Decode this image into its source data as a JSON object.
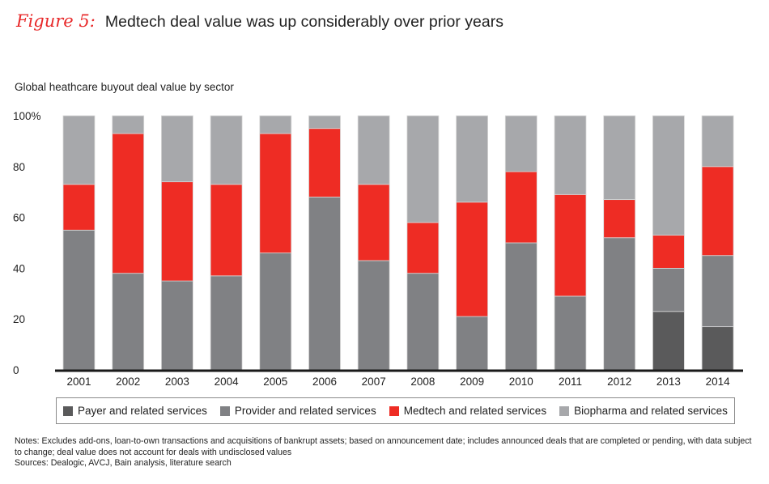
{
  "figure_label": "Figure 5:",
  "title": "Medtech deal value was up considerably over prior years",
  "notes": "Notes: Excludes add-ons, loan-to-own transactions and acquisitions of bankrupt assets; based on announcement date; includes announced deals that are completed or pending, with data subject to change; deal value does not account for deals with undisclosed values",
  "sources": "Sources: Dealogic, AVCJ, Bain analysis, literature search",
  "chart_data": {
    "type": "bar",
    "stacked": true,
    "title": "Medtech deal value was up considerably over prior years",
    "subtitle": "Global heathcare buyout deal value by sector",
    "xlabel": "",
    "ylabel": "",
    "ylim": [
      0,
      100
    ],
    "yticks": [
      0,
      20,
      40,
      60,
      80,
      100
    ],
    "ytick_labels": [
      "0",
      "20",
      "40",
      "60",
      "80",
      "100%"
    ],
    "grid": false,
    "legend_position": "bottom",
    "categories": [
      "2001",
      "2002",
      "2003",
      "2004",
      "2005",
      "2006",
      "2007",
      "2008",
      "2009",
      "2010",
      "2011",
      "2012",
      "2013",
      "2014"
    ],
    "series": [
      {
        "name": "Payer and related services",
        "color": "#5a5a5b",
        "values": [
          0,
          0,
          0,
          0,
          0,
          0,
          0,
          0,
          0,
          0,
          0,
          0,
          23,
          17
        ]
      },
      {
        "name": "Provider and related services",
        "color": "#808184",
        "values": [
          55,
          38,
          35,
          37,
          46,
          68,
          43,
          38,
          21,
          50,
          29,
          52,
          17,
          28
        ]
      },
      {
        "name": "Medtech and related services",
        "color": "#ee2c24",
        "values": [
          18,
          55,
          39,
          36,
          47,
          27,
          30,
          20,
          45,
          28,
          40,
          15,
          13,
          35
        ]
      },
      {
        "name": "Biopharma and related services",
        "color": "#a7a8ab",
        "values": [
          27,
          7,
          26,
          27,
          7,
          5,
          27,
          42,
          34,
          22,
          31,
          33,
          47,
          20
        ]
      }
    ]
  }
}
